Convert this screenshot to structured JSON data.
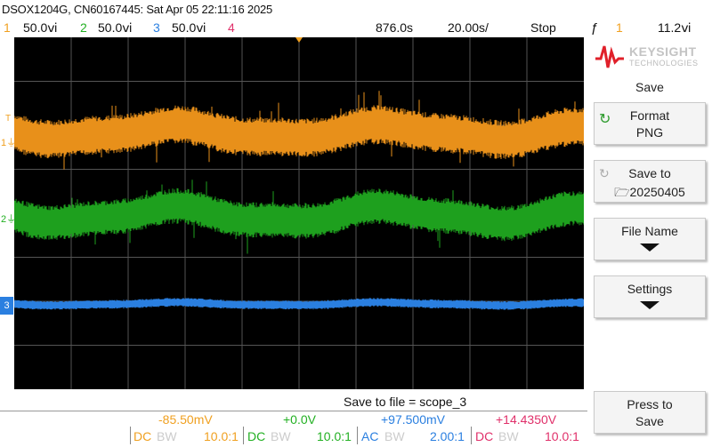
{
  "header": {
    "title": "DSOX1204G, CN60167445: Sat Apr 05 22:11:16 2025"
  },
  "channels": [
    {
      "num": "1",
      "scale": "50.0ⅵ",
      "color": "#f0a020"
    },
    {
      "num": "2",
      "scale": "50.0ⅵ",
      "color": "#22b022"
    },
    {
      "num": "3",
      "scale": "50.0ⅵ",
      "color": "#2a7fe0"
    },
    {
      "num": "4",
      "scale": "",
      "color": "#e0306a"
    }
  ],
  "timebase": {
    "delay": "876.0ѕ",
    "scale": "20.00ѕ/",
    "state": "Stop",
    "trigger_icon": "trigger-edge-icon",
    "trigger_channel": "1",
    "trigger_level": "11.2ⅵ"
  },
  "channel_markers": {
    "ch1": "1",
    "ch2": "2",
    "ch3": "3",
    "trigger": "T"
  },
  "side_menu": {
    "brand": "KEYSIGHT",
    "brand_sub": "TECHNOLOGIES",
    "title": "Save",
    "softkeys": [
      {
        "line1": "Format",
        "line2": "PNG"
      },
      {
        "line1": "Save to",
        "line2": "20250405"
      },
      {
        "line1": "File Name",
        "line2": ""
      },
      {
        "line1": "Settings",
        "line2": ""
      },
      {
        "line1": "Press to",
        "line2": "Save"
      }
    ]
  },
  "status": {
    "save_to_file": "Save to file = scope_3"
  },
  "offsets": [
    {
      "value": "-85.50mV",
      "color": "#f0a020"
    },
    {
      "value": "+0.0V",
      "color": "#22b022"
    },
    {
      "value": "+97.500mV",
      "color": "#2a7fe0"
    },
    {
      "value": "+14.4350V",
      "color": "#e0306a"
    }
  ],
  "coupling": [
    {
      "coupling": "DC",
      "bw": "BW",
      "probe": "10.0:1",
      "color": "#f0a020"
    },
    {
      "coupling": "DC",
      "bw": "BW",
      "probe": "10.0:1",
      "color": "#22b022"
    },
    {
      "coupling": "AC",
      "bw": "BW",
      "probe": "2.00:1",
      "color": "#2a7fe0"
    },
    {
      "coupling": "DC",
      "bw": "BW",
      "probe": "10.0:1",
      "color": "#e0306a"
    }
  ]
}
